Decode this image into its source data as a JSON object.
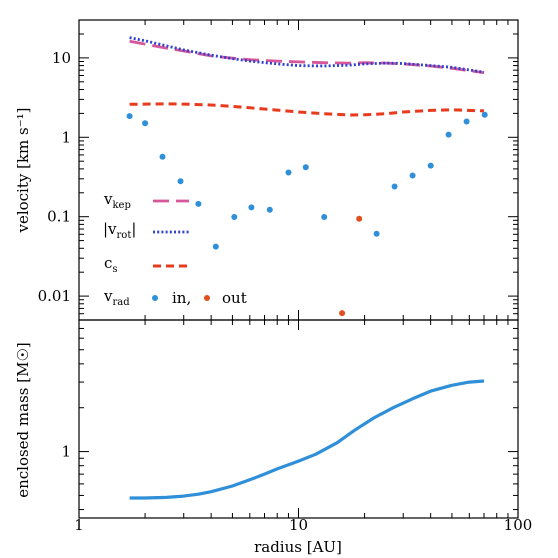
{
  "chart_data": [
    {
      "type": "line",
      "xscale": "log",
      "yscale": "log",
      "xlim": [
        1,
        100
      ],
      "ylim": [
        0.005,
        30
      ],
      "ylabel": "velocity [km s⁻¹]",
      "yticks": [
        {
          "value": 10,
          "label": "10"
        },
        {
          "value": 1,
          "label": "1"
        },
        {
          "value": 0.1,
          "label": "0.1"
        },
        {
          "value": 0.01,
          "label": "0.01"
        }
      ],
      "legend": {
        "placement": "lower-left",
        "entries": [
          {
            "key": "v_kep",
            "base": "v",
            "sub": "kep"
          },
          {
            "key": "v_rot",
            "base": "|v",
            "sub": "rot",
            "suffix": "|"
          },
          {
            "key": "c_s",
            "base": "c",
            "sub": "s"
          },
          {
            "key": "v_rad",
            "base": "v",
            "sub": "rad",
            "in_label": "in,",
            "out_label": "out"
          }
        ]
      },
      "series": [
        {
          "key": "v_kep",
          "style": "long-dash",
          "color": "#d6579a",
          "x": [
            1.7,
            2.0,
            2.5,
            3.0,
            4.0,
            5.0,
            6.0,
            8.0,
            10.0,
            13.0,
            17.0,
            20.0,
            25.0,
            30.0,
            40.0,
            50.0,
            70.0
          ],
          "y": [
            16.2,
            14.9,
            13.3,
            12.2,
            10.6,
            9.9,
            9.5,
            9.1,
            8.9,
            8.7,
            8.6,
            8.7,
            8.6,
            8.4,
            7.9,
            7.4,
            6.5
          ]
        },
        {
          "key": "v_rot",
          "style": "dotted",
          "color": "#2f3fcf",
          "x": [
            1.7,
            2.0,
            2.5,
            3.0,
            4.0,
            5.0,
            6.0,
            8.0,
            10.0,
            13.0,
            17.0,
            20.0,
            25.0,
            30.0,
            40.0,
            50.0,
            70.0
          ],
          "y": [
            18.0,
            16.4,
            14.2,
            12.6,
            10.8,
            9.8,
            9.1,
            8.4,
            8.0,
            7.9,
            8.1,
            8.4,
            8.6,
            8.5,
            8.0,
            7.6,
            6.6
          ]
        },
        {
          "key": "c_s",
          "style": "dashed",
          "color": "#e83a1c",
          "x": [
            1.7,
            2.0,
            2.5,
            3.0,
            4.0,
            5.0,
            6.0,
            8.0,
            10.0,
            13.0,
            17.0,
            20.0,
            25.0,
            30.0,
            40.0,
            50.0,
            70.0
          ],
          "y": [
            2.6,
            2.62,
            2.64,
            2.62,
            2.55,
            2.45,
            2.35,
            2.2,
            2.08,
            1.98,
            1.91,
            1.92,
            1.98,
            2.08,
            2.18,
            2.22,
            2.15
          ]
        }
      ],
      "points": [
        {
          "key": "v_rad_in",
          "color": "#2f8fd8",
          "x": [
            1.7,
            2.0,
            2.4,
            2.9,
            3.5,
            4.2,
            5.1,
            6.1,
            7.4,
            9.0,
            10.8,
            13.1,
            22.7,
            27.4,
            33.1,
            40.0,
            48.3,
            58.3,
            70.5
          ],
          "y": [
            1.85,
            1.5,
            0.57,
            0.28,
            0.145,
            0.042,
            0.099,
            0.131,
            0.122,
            0.36,
            0.42,
            0.099,
            0.061,
            0.24,
            0.33,
            0.44,
            1.08,
            1.58,
            1.92
          ]
        },
        {
          "key": "v_rad_out",
          "color": "#e0501e",
          "x": [
            15.8,
            18.9
          ],
          "y": [
            0.0061,
            0.094
          ]
        }
      ]
    },
    {
      "type": "line",
      "xscale": "log",
      "yscale": "log",
      "xlim": [
        1,
        100
      ],
      "ylim": [
        0.35,
        8
      ],
      "xlabel": "radius [AU]",
      "ylabel": "enclosed mass [M☉]",
      "xticks": [
        {
          "value": 1,
          "label": "1"
        },
        {
          "value": 10,
          "label": "10"
        },
        {
          "value": 100,
          "label": "100"
        }
      ],
      "yticks": [
        {
          "value": 1,
          "label": "1"
        }
      ],
      "series": [
        {
          "key": "enclosed_mass",
          "style": "solid",
          "color": "#2f8fd8",
          "x": [
            1.7,
            2.0,
            2.5,
            3.0,
            3.5,
            4.0,
            5.0,
            6.0,
            7.0,
            8.0,
            10.0,
            12.0,
            15.0,
            18.0,
            22.0,
            27.0,
            33.0,
            40.0,
            50.0,
            60.0,
            70.0
          ],
          "y": [
            0.48,
            0.48,
            0.485,
            0.495,
            0.51,
            0.53,
            0.58,
            0.64,
            0.7,
            0.76,
            0.86,
            0.96,
            1.15,
            1.4,
            1.7,
            2.0,
            2.3,
            2.6,
            2.85,
            3.0,
            3.05
          ]
        }
      ]
    }
  ]
}
